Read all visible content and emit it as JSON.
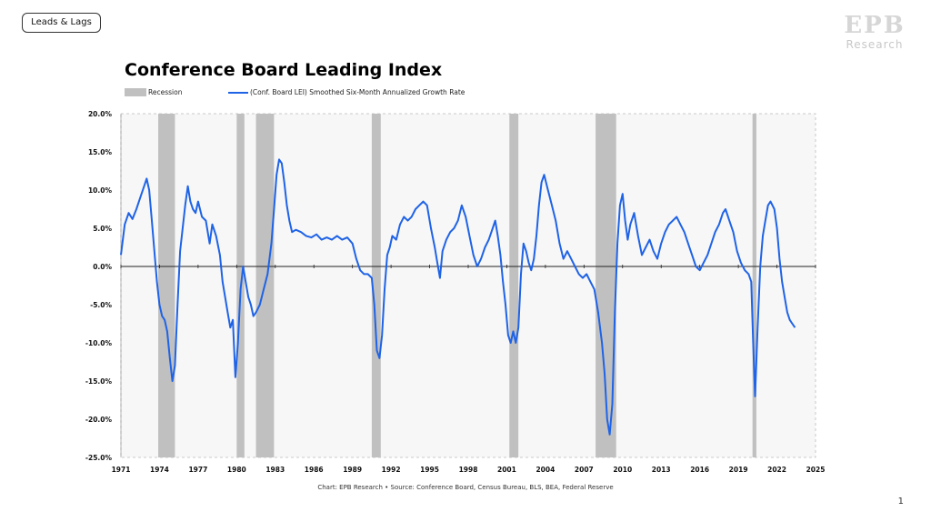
{
  "tag_label": "Leads & Lags",
  "logo": {
    "mark": "EPB",
    "word": "Research"
  },
  "page_number": "1",
  "source_note": "Chart: EPB Research  •  Source: Conference Board, Census Bureau, BLS, BEA, Federal Reserve",
  "chart_data": {
    "type": "line",
    "title": "Conference Board Leading Index",
    "legend": [
      {
        "label": "Recession",
        "kind": "area",
        "color": "#c0c0c0"
      },
      {
        "label": "(Conf. Board LEI) Smoothed Six-Month Annualized Growth Rate",
        "kind": "line",
        "color": "#1f63e6"
      }
    ],
    "xlim": [
      1971,
      2025
    ],
    "ylim": [
      -25,
      20
    ],
    "xticks": [
      "1971",
      "1974",
      "1977",
      "1980",
      "1983",
      "1986",
      "1989",
      "1992",
      "1995",
      "1998",
      "2001",
      "2004",
      "2007",
      "2010",
      "2013",
      "2016",
      "2019",
      "2022",
      "2025"
    ],
    "yticks": [
      "20.0%",
      "15.0%",
      "10.0%",
      "5.0%",
      "0.0%",
      "-5.0%",
      "-10.0%",
      "-15.0%",
      "-20.0%",
      "-25.0%"
    ],
    "recessions": [
      [
        1973.9,
        1975.2
      ],
      [
        1980.0,
        1980.6
      ],
      [
        1981.5,
        1982.9
      ],
      [
        1990.5,
        1991.2
      ],
      [
        2001.2,
        2001.9
      ],
      [
        2007.9,
        2009.5
      ],
      [
        2020.1,
        2020.4
      ]
    ],
    "series": [
      {
        "name": "(Conf. Board LEI) Smoothed Six-Month Annualized Growth Rate",
        "color": "#1f63e6",
        "points": [
          [
            1971.0,
            1.5
          ],
          [
            1971.3,
            5.5
          ],
          [
            1971.6,
            7.0
          ],
          [
            1971.9,
            6.2
          ],
          [
            1972.2,
            7.5
          ],
          [
            1972.5,
            9.0
          ],
          [
            1972.8,
            10.5
          ],
          [
            1973.0,
            11.5
          ],
          [
            1973.2,
            10.0
          ],
          [
            1973.4,
            6.0
          ],
          [
            1973.6,
            2.0
          ],
          [
            1973.8,
            -2.0
          ],
          [
            1974.0,
            -5.0
          ],
          [
            1974.2,
            -6.5
          ],
          [
            1974.4,
            -7.0
          ],
          [
            1974.6,
            -8.5
          ],
          [
            1974.8,
            -12.0
          ],
          [
            1975.0,
            -15.0
          ],
          [
            1975.2,
            -13.0
          ],
          [
            1975.4,
            -5.0
          ],
          [
            1975.6,
            2.0
          ],
          [
            1975.8,
            5.0
          ],
          [
            1976.0,
            8.0
          ],
          [
            1976.2,
            10.5
          ],
          [
            1976.4,
            8.5
          ],
          [
            1976.6,
            7.5
          ],
          [
            1976.8,
            7.0
          ],
          [
            1977.0,
            8.5
          ],
          [
            1977.3,
            6.5
          ],
          [
            1977.6,
            6.0
          ],
          [
            1977.9,
            3.0
          ],
          [
            1978.1,
            5.5
          ],
          [
            1978.4,
            4.0
          ],
          [
            1978.7,
            1.5
          ],
          [
            1978.9,
            -2.0
          ],
          [
            1979.1,
            -4.0
          ],
          [
            1979.3,
            -6.0
          ],
          [
            1979.5,
            -8.0
          ],
          [
            1979.7,
            -7.0
          ],
          [
            1979.9,
            -14.5
          ],
          [
            1980.1,
            -10.0
          ],
          [
            1980.3,
            -3.0
          ],
          [
            1980.5,
            0.0
          ],
          [
            1980.7,
            -2.0
          ],
          [
            1980.9,
            -4.0
          ],
          [
            1981.1,
            -5.0
          ],
          [
            1981.3,
            -6.5
          ],
          [
            1981.5,
            -6.0
          ],
          [
            1981.8,
            -5.0
          ],
          [
            1982.1,
            -3.0
          ],
          [
            1982.4,
            -1.0
          ],
          [
            1982.7,
            3.0
          ],
          [
            1982.9,
            7.5
          ],
          [
            1983.1,
            12.0
          ],
          [
            1983.3,
            14.0
          ],
          [
            1983.5,
            13.5
          ],
          [
            1983.7,
            11.0
          ],
          [
            1983.9,
            8.0
          ],
          [
            1984.1,
            6.0
          ],
          [
            1984.3,
            4.5
          ],
          [
            1984.6,
            4.8
          ],
          [
            1985.0,
            4.5
          ],
          [
            1985.4,
            4.0
          ],
          [
            1985.8,
            3.8
          ],
          [
            1986.2,
            4.2
          ],
          [
            1986.6,
            3.5
          ],
          [
            1987.0,
            3.8
          ],
          [
            1987.4,
            3.5
          ],
          [
            1987.8,
            4.0
          ],
          [
            1988.2,
            3.5
          ],
          [
            1988.6,
            3.8
          ],
          [
            1989.0,
            3.0
          ],
          [
            1989.3,
            1.0
          ],
          [
            1989.6,
            -0.5
          ],
          [
            1989.9,
            -1.0
          ],
          [
            1990.2,
            -1.0
          ],
          [
            1990.5,
            -1.5
          ],
          [
            1990.7,
            -5.0
          ],
          [
            1990.9,
            -11.0
          ],
          [
            1991.1,
            -12.0
          ],
          [
            1991.3,
            -9.0
          ],
          [
            1991.5,
            -3.0
          ],
          [
            1991.7,
            1.5
          ],
          [
            1991.9,
            2.5
          ],
          [
            1992.1,
            4.0
          ],
          [
            1992.4,
            3.5
          ],
          [
            1992.7,
            5.5
          ],
          [
            1993.0,
            6.5
          ],
          [
            1993.3,
            6.0
          ],
          [
            1993.6,
            6.5
          ],
          [
            1993.9,
            7.5
          ],
          [
            1994.2,
            8.0
          ],
          [
            1994.5,
            8.5
          ],
          [
            1994.8,
            8.0
          ],
          [
            1995.1,
            5.0
          ],
          [
            1995.4,
            2.5
          ],
          [
            1995.6,
            0.5
          ],
          [
            1995.8,
            -1.5
          ],
          [
            1996.0,
            2.0
          ],
          [
            1996.3,
            3.5
          ],
          [
            1996.6,
            4.5
          ],
          [
            1996.9,
            5.0
          ],
          [
            1997.2,
            6.0
          ],
          [
            1997.5,
            8.0
          ],
          [
            1997.8,
            6.5
          ],
          [
            1998.1,
            4.0
          ],
          [
            1998.4,
            1.5
          ],
          [
            1998.7,
            0.0
          ],
          [
            1999.0,
            1.0
          ],
          [
            1999.3,
            2.5
          ],
          [
            1999.6,
            3.5
          ],
          [
            1999.9,
            5.0
          ],
          [
            2000.1,
            6.0
          ],
          [
            2000.3,
            4.0
          ],
          [
            2000.5,
            1.5
          ],
          [
            2000.7,
            -2.0
          ],
          [
            2000.9,
            -5.0
          ],
          [
            2001.1,
            -9.0
          ],
          [
            2001.3,
            -10.0
          ],
          [
            2001.5,
            -8.5
          ],
          [
            2001.7,
            -10.0
          ],
          [
            2001.9,
            -8.0
          ],
          [
            2002.1,
            -1.0
          ],
          [
            2002.3,
            3.0
          ],
          [
            2002.5,
            2.0
          ],
          [
            2002.7,
            0.5
          ],
          [
            2002.9,
            -0.5
          ],
          [
            2003.1,
            1.0
          ],
          [
            2003.3,
            4.0
          ],
          [
            2003.5,
            8.0
          ],
          [
            2003.7,
            11.0
          ],
          [
            2003.9,
            12.0
          ],
          [
            2004.2,
            10.0
          ],
          [
            2004.5,
            8.0
          ],
          [
            2004.8,
            6.0
          ],
          [
            2005.1,
            3.0
          ],
          [
            2005.4,
            1.0
          ],
          [
            2005.7,
            2.0
          ],
          [
            2006.0,
            1.0
          ],
          [
            2006.3,
            0.0
          ],
          [
            2006.6,
            -1.0
          ],
          [
            2006.9,
            -1.5
          ],
          [
            2007.2,
            -1.0
          ],
          [
            2007.5,
            -2.0
          ],
          [
            2007.8,
            -3.0
          ],
          [
            2008.1,
            -6.0
          ],
          [
            2008.4,
            -10.0
          ],
          [
            2008.6,
            -14.0
          ],
          [
            2008.8,
            -20.0
          ],
          [
            2009.0,
            -22.0
          ],
          [
            2009.2,
            -18.0
          ],
          [
            2009.4,
            -6.0
          ],
          [
            2009.6,
            3.0
          ],
          [
            2009.8,
            8.0
          ],
          [
            2010.0,
            9.5
          ],
          [
            2010.2,
            6.0
          ],
          [
            2010.4,
            3.5
          ],
          [
            2010.6,
            5.5
          ],
          [
            2010.9,
            7.0
          ],
          [
            2011.2,
            4.0
          ],
          [
            2011.5,
            1.5
          ],
          [
            2011.8,
            2.5
          ],
          [
            2012.1,
            3.5
          ],
          [
            2012.4,
            2.0
          ],
          [
            2012.7,
            1.0
          ],
          [
            2013.0,
            3.0
          ],
          [
            2013.3,
            4.5
          ],
          [
            2013.6,
            5.5
          ],
          [
            2013.9,
            6.0
          ],
          [
            2014.2,
            6.5
          ],
          [
            2014.5,
            5.5
          ],
          [
            2014.8,
            4.5
          ],
          [
            2015.1,
            3.0
          ],
          [
            2015.4,
            1.5
          ],
          [
            2015.7,
            0.0
          ],
          [
            2016.0,
            -0.5
          ],
          [
            2016.3,
            0.5
          ],
          [
            2016.6,
            1.5
          ],
          [
            2016.9,
            3.0
          ],
          [
            2017.2,
            4.5
          ],
          [
            2017.5,
            5.5
          ],
          [
            2017.8,
            7.0
          ],
          [
            2018.0,
            7.5
          ],
          [
            2018.3,
            6.0
          ],
          [
            2018.6,
            4.5
          ],
          [
            2018.9,
            2.0
          ],
          [
            2019.2,
            0.5
          ],
          [
            2019.5,
            -0.5
          ],
          [
            2019.8,
            -1.0
          ],
          [
            2020.0,
            -2.0
          ],
          [
            2020.15,
            -10.0
          ],
          [
            2020.3,
            -17.0
          ],
          [
            2020.5,
            -8.0
          ],
          [
            2020.7,
            0.0
          ],
          [
            2020.9,
            4.0
          ],
          [
            2021.1,
            6.0
          ],
          [
            2021.3,
            8.0
          ],
          [
            2021.5,
            8.5
          ],
          [
            2021.8,
            7.5
          ],
          [
            2022.0,
            5.0
          ],
          [
            2022.2,
            1.0
          ],
          [
            2022.4,
            -2.0
          ],
          [
            2022.6,
            -4.0
          ],
          [
            2022.8,
            -6.0
          ],
          [
            2023.0,
            -7.0
          ],
          [
            2023.2,
            -7.5
          ],
          [
            2023.4,
            -8.0
          ]
        ]
      }
    ]
  }
}
